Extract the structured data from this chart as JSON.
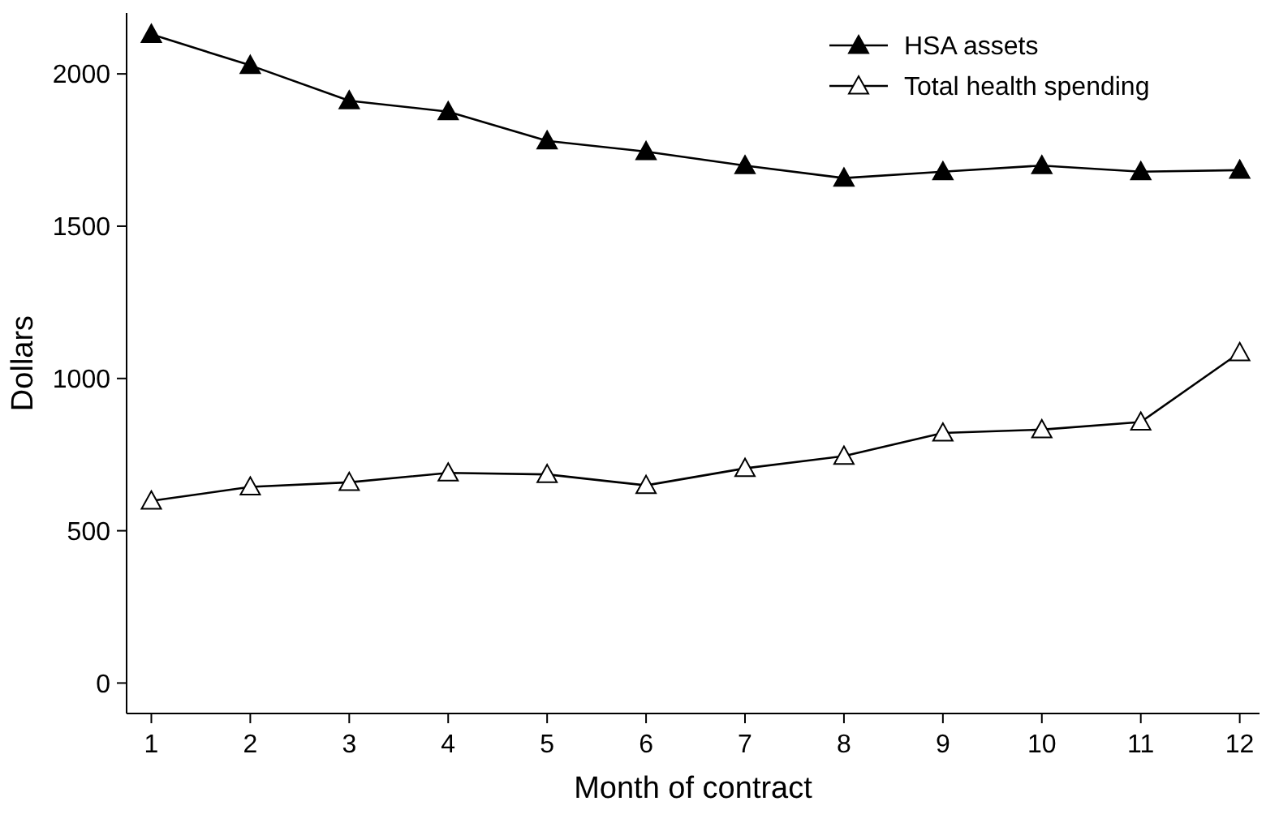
{
  "chart_data": {
    "type": "line",
    "xlabel": "Month of contract",
    "ylabel": "Dollars",
    "x": [
      1,
      2,
      3,
      4,
      5,
      6,
      7,
      8,
      9,
      10,
      11,
      12
    ],
    "xlim": [
      0.75,
      12.2
    ],
    "xticks": [
      1,
      2,
      3,
      4,
      5,
      6,
      7,
      8,
      9,
      10,
      11,
      12
    ],
    "ylim": [
      -100,
      2200
    ],
    "yticks": [
      0,
      500,
      1000,
      1500,
      2000
    ],
    "marker": "triangle",
    "grid": false,
    "legend": "top right",
    "series": [
      {
        "name": "HSA assets",
        "color": "#000000",
        "values": [
          2130,
          2028,
          1912,
          1876,
          1780,
          1745,
          1699,
          1658,
          1679,
          1699,
          1679,
          1684
        ]
      },
      {
        "name": "Total health spending",
        "color": "#000000",
        "values": [
          598,
          644,
          659,
          690,
          685,
          649,
          705,
          745,
          821,
          832,
          857,
          1085
        ]
      }
    ]
  }
}
